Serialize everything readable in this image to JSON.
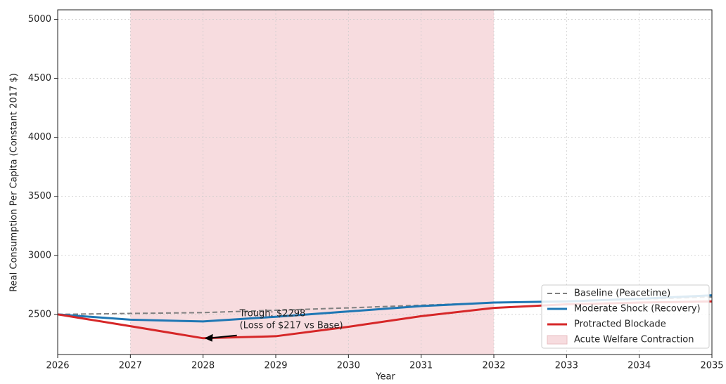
{
  "chart_data": {
    "type": "line",
    "xlabel": "Year",
    "ylabel": "Real Consumption Per Capita (Constant 2017 $)",
    "x": [
      2026,
      2027,
      2028,
      2029,
      2030,
      2031,
      2032,
      2033,
      2034,
      2035
    ],
    "series": [
      {
        "name": "Baseline (Peacetime)",
        "color": "#808080",
        "dash": true,
        "values": [
          2500,
          2508,
          2515,
          2535,
          2555,
          2578,
          2598,
          2612,
          2628,
          2648
        ]
      },
      {
        "name": "Moderate Shock (Recovery)",
        "color": "#1f77b4",
        "dash": false,
        "values": [
          2500,
          2455,
          2440,
          2480,
          2525,
          2570,
          2600,
          2610,
          2632,
          2662
        ]
      },
      {
        "name": "Protracted Blockade",
        "color": "#d62728",
        "dash": false,
        "values": [
          2500,
          2400,
          2298,
          2315,
          2395,
          2485,
          2555,
          2585,
          2600,
          2610
        ]
      }
    ],
    "span": {
      "from": 2027,
      "to": 2032,
      "label": "Acute Welfare Contraction",
      "color": "#f7dcdf"
    },
    "annotation": {
      "lines": [
        "Trough: $2298",
        "(Loss of $217 vs Base)"
      ],
      "x": 2028,
      "y": 2298,
      "color": "#e0404a"
    },
    "xlim": [
      2026,
      2035
    ],
    "ylim": [
      2160,
      5080
    ],
    "xticks": [
      2026,
      2027,
      2028,
      2029,
      2030,
      2031,
      2032,
      2033,
      2034,
      2035
    ],
    "yticks": [
      2500,
      3000,
      3500,
      4000,
      4500,
      5000
    ],
    "grid": true,
    "legend": "lower right"
  }
}
